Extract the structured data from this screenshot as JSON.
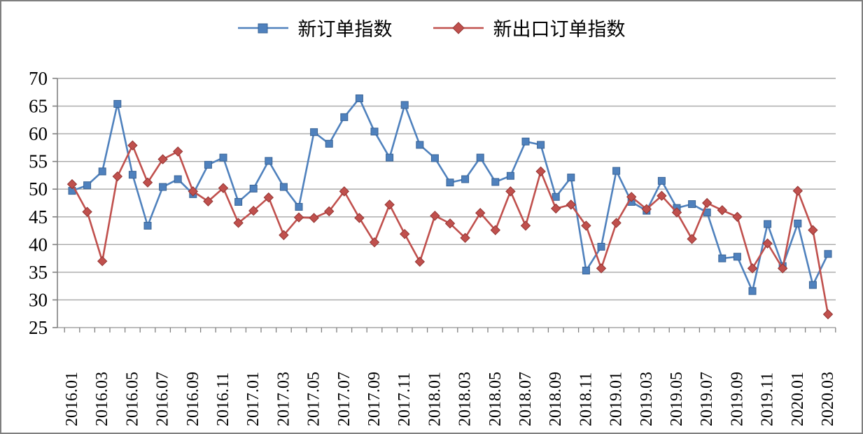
{
  "page": {
    "background_color": "#ffffff",
    "border_color": "#7f7f7f"
  },
  "legend": {
    "position": "top-center",
    "items": [
      {
        "label": "新订单指数",
        "marker": "square-marker-icon",
        "color": "#4F81BD"
      },
      {
        "label": "新出口订单指数",
        "marker": "diamond-marker-icon",
        "color": "#C0504D"
      }
    ]
  },
  "chart_data": {
    "type": "line",
    "title": "",
    "xlabel": "",
    "ylabel": "",
    "ylim": [
      25,
      70
    ],
    "yticks": [
      25,
      30,
      35,
      40,
      45,
      50,
      55,
      60,
      65,
      70
    ],
    "grid": true,
    "legend_position": "top",
    "gridline_color": "#a6a6a6",
    "axis_color": "#808080",
    "text_color": "#000000",
    "x_tick_labels": [
      "2016.01",
      "2016.03",
      "2016.05",
      "2016.07",
      "2016.09",
      "2016.11",
      "2017.01",
      "2017.03",
      "2017.05",
      "2017.07",
      "2017.09",
      "2017.11",
      "2018.01",
      "2018.03",
      "2018.05",
      "2018.07",
      "2018.09",
      "2018.11",
      "2019.01",
      "2019.03",
      "2019.05",
      "2019.07",
      "2019.09",
      "2019.11",
      "2020.01",
      "2020.03"
    ],
    "x": [
      "2016.01",
      "2016.02",
      "2016.03",
      "2016.04",
      "2016.05",
      "2016.06",
      "2016.07",
      "2016.08",
      "2016.09",
      "2016.10",
      "2016.11",
      "2016.12",
      "2017.01",
      "2017.02",
      "2017.03",
      "2017.04",
      "2017.05",
      "2017.06",
      "2017.07",
      "2017.08",
      "2017.09",
      "2017.10",
      "2017.11",
      "2017.12",
      "2018.01",
      "2018.02",
      "2018.03",
      "2018.04",
      "2018.05",
      "2018.06",
      "2018.07",
      "2018.08",
      "2018.09",
      "2018.10",
      "2018.11",
      "2018.12",
      "2019.01",
      "2019.02",
      "2019.03",
      "2019.04",
      "2019.05",
      "2019.06",
      "2019.07",
      "2019.08",
      "2019.09",
      "2019.10",
      "2019.11",
      "2019.12",
      "2020.01",
      "2020.02",
      "2020.03"
    ],
    "series": [
      {
        "name": "新订单指数",
        "color": "#4F81BD",
        "marker": "square",
        "values": [
          49.7,
          50.7,
          53.2,
          65.4,
          52.6,
          43.4,
          50.4,
          51.8,
          49.1,
          54.4,
          55.7,
          47.7,
          50.1,
          55.1,
          50.4,
          46.8,
          60.3,
          58.2,
          63.0,
          66.4,
          60.4,
          55.7,
          65.2,
          58.0,
          55.6,
          51.2,
          51.8,
          55.7,
          51.3,
          52.4,
          58.6,
          58.0,
          48.6,
          52.1,
          35.3,
          39.6,
          53.3,
          47.7,
          46.1,
          51.5,
          46.6,
          47.3,
          45.8,
          37.5,
          37.8,
          31.6,
          43.7,
          36.1,
          43.8,
          32.7,
          38.3
        ]
      },
      {
        "name": "新出口订单指数",
        "color": "#C0504D",
        "marker": "diamond",
        "values": [
          50.9,
          45.9,
          37.0,
          52.3,
          57.9,
          51.2,
          55.4,
          56.8,
          49.6,
          47.8,
          50.2,
          43.9,
          46.1,
          48.5,
          41.7,
          44.9,
          44.8,
          46.0,
          49.6,
          44.8,
          40.4,
          47.2,
          41.9,
          36.9,
          45.2,
          43.8,
          41.2,
          45.7,
          42.6,
          49.6,
          43.4,
          53.2,
          46.5,
          47.2,
          43.4,
          35.7,
          43.9,
          48.6,
          46.4,
          48.8,
          45.8,
          41.0,
          47.5,
          46.2,
          45.0,
          35.7,
          40.2,
          35.7,
          49.7,
          42.6,
          27.4
        ]
      }
    ]
  }
}
